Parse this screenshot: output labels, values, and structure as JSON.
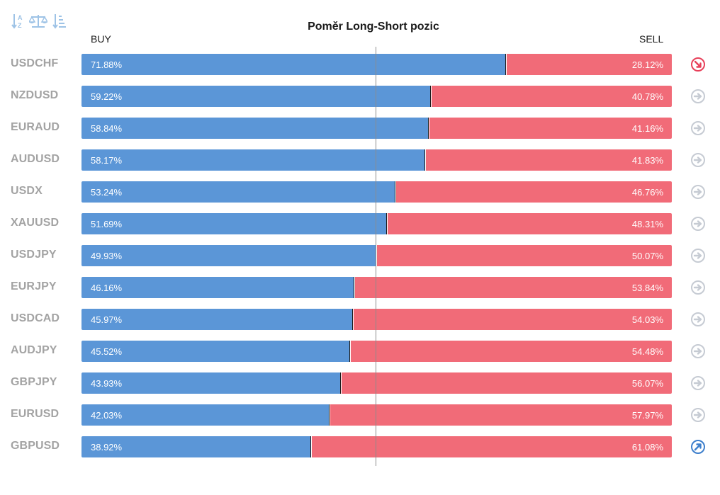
{
  "toolbar": {
    "icons": [
      "sort-alpha-icon",
      "balance-scale-icon",
      "sort-descending-icon"
    ],
    "color": "#9ec3e6"
  },
  "chart_data": {
    "type": "bar",
    "stacked": true,
    "orientation": "horizontal",
    "title": "Poměr Long-Short pozic",
    "buy_label": "BUY",
    "sell_label": "SELL",
    "categories": [
      "USDCHF",
      "NZDUSD",
      "EURAUD",
      "AUDUSD",
      "USDX",
      "XAUUSD",
      "USDJPY",
      "EURJPY",
      "USDCAD",
      "AUDJPY",
      "GBPJPY",
      "EURUSD",
      "GBPUSD"
    ],
    "series": [
      {
        "name": "BUY",
        "color": "#5b96d7",
        "values": [
          71.88,
          59.22,
          58.84,
          58.17,
          53.24,
          51.69,
          49.93,
          46.16,
          45.97,
          45.52,
          43.93,
          42.03,
          38.92
        ]
      },
      {
        "name": "SELL",
        "color": "#f16b78",
        "values": [
          28.12,
          40.78,
          41.16,
          41.83,
          46.76,
          48.31,
          50.07,
          53.84,
          54.03,
          54.48,
          56.07,
          57.97,
          61.08
        ]
      }
    ],
    "buy_labels": [
      "71.88%",
      "59.22%",
      "58.84%",
      "58.17%",
      "53.24%",
      "51.69%",
      "49.93%",
      "46.16%",
      "45.97%",
      "45.52%",
      "43.93%",
      "42.03%",
      "38.92%"
    ],
    "sell_labels": [
      "28.12%",
      "40.78%",
      "41.16%",
      "41.83%",
      "46.76%",
      "48.31%",
      "50.07%",
      "53.84%",
      "54.03%",
      "54.48%",
      "56.07%",
      "57.97%",
      "61.08%"
    ],
    "signals": [
      "down",
      "neutral",
      "neutral",
      "neutral",
      "neutral",
      "neutral",
      "neutral",
      "neutral",
      "neutral",
      "neutral",
      "neutral",
      "neutral",
      "up"
    ],
    "signal_colors": {
      "down": "#e8405a",
      "neutral": "#c6cbd3",
      "up": "#3d7fcc"
    },
    "xlim": [
      0,
      100
    ],
    "reference_line": 50,
    "grid": false
  }
}
